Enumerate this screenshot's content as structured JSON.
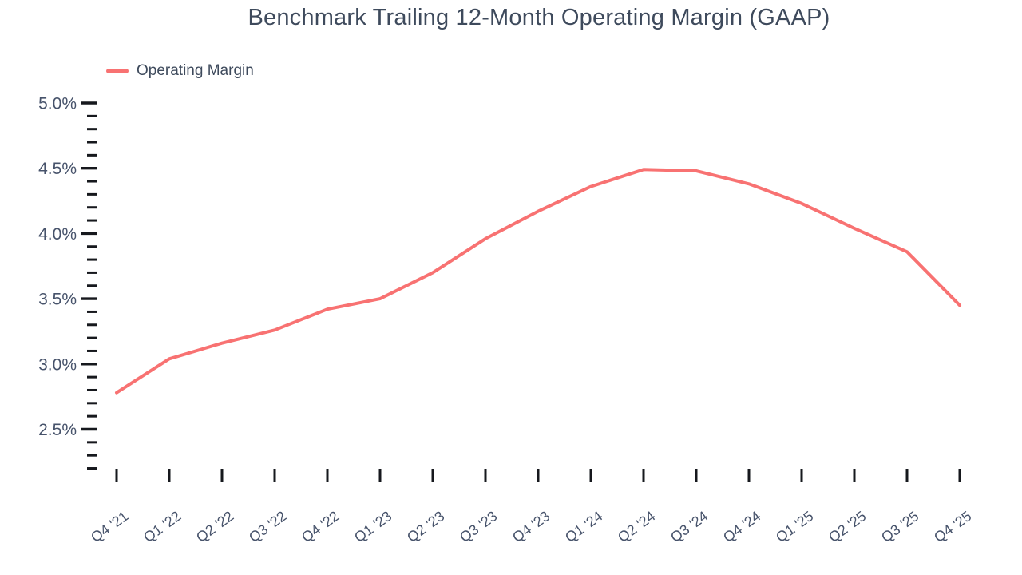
{
  "title": "Benchmark Trailing 12-Month Operating Margin (GAAP)",
  "legend": {
    "label": "Operating Margin"
  },
  "colors": {
    "line": "#f87272",
    "title_text": "#3e4a5c",
    "axis_label_text": "#47536b",
    "tick_mark": "#16181d"
  },
  "chart_data": {
    "type": "line",
    "title": "Benchmark Trailing 12-Month Operating Margin (GAAP)",
    "xlabel": "",
    "ylabel": "",
    "unit": "%",
    "grid": false,
    "legend_position": "top-left",
    "categories": [
      "Q4 '21",
      "Q1 '22",
      "Q2 '22",
      "Q3 '22",
      "Q4 '22",
      "Q1 '23",
      "Q2 '23",
      "Q3 '23",
      "Q4 '23",
      "Q1 '24",
      "Q2 '24",
      "Q3 '24",
      "Q4 '24",
      "Q1 '25",
      "Q2 '25",
      "Q3 '25",
      "Q4 '25"
    ],
    "series": [
      {
        "name": "Operating Margin",
        "values": [
          2.78,
          3.04,
          3.16,
          3.26,
          3.42,
          3.5,
          3.7,
          3.96,
          4.17,
          4.36,
          4.49,
          4.48,
          4.38,
          4.23,
          4.04,
          3.86,
          3.45
        ]
      }
    ],
    "y_axis": {
      "min": 2.2,
      "max": 5.0,
      "major_ticks": [
        5.0,
        4.5,
        4.0,
        3.5,
        3.0,
        2.5
      ],
      "major_tick_labels": [
        "5.0%",
        "4.5%",
        "4.0%",
        "3.5%",
        "3.0%",
        "2.5%"
      ],
      "minor_tick_step": 0.1
    }
  }
}
